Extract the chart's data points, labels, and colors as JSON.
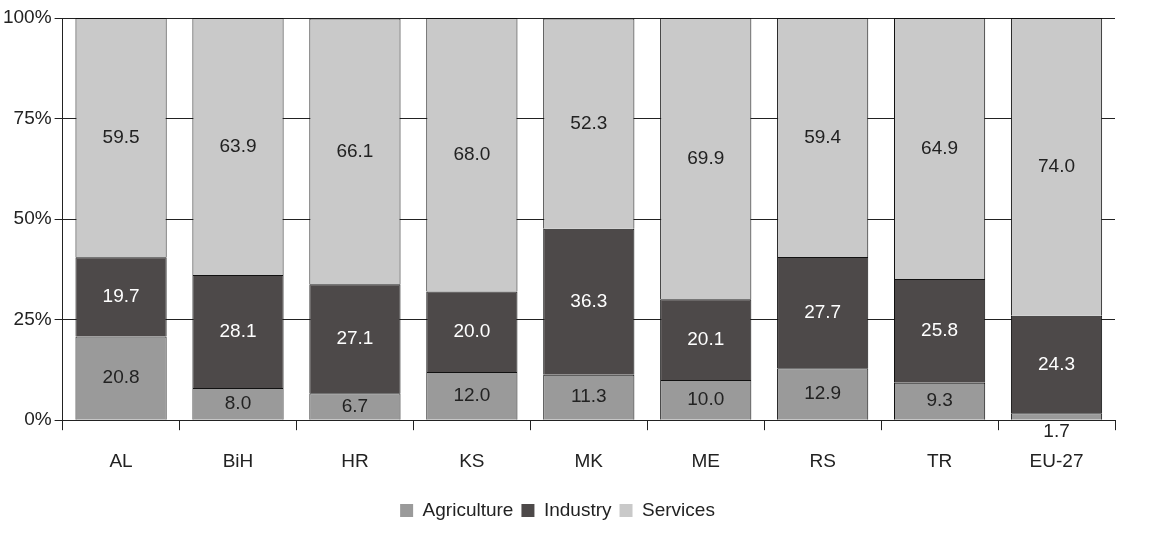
{
  "chart_data": {
    "type": "bar",
    "stacked": true,
    "categories": [
      "AL",
      "BiH",
      "HR",
      "KS",
      "MK",
      "ME",
      "RS",
      "TR",
      "EU-27"
    ],
    "series": [
      {
        "name": "Agriculture",
        "color": "#9a9a9a",
        "values": [
          20.8,
          8.0,
          6.7,
          12.0,
          11.3,
          10.0,
          12.9,
          9.3,
          1.7
        ],
        "value_labels": [
          "20.8",
          "8.0",
          "6.7",
          "12.0",
          "11.3",
          "10.0",
          "12.9",
          "9.3",
          "1.7"
        ]
      },
      {
        "name": "Industry",
        "color": "#4d4949",
        "values": [
          19.7,
          28.1,
          27.1,
          20.0,
          36.3,
          20.1,
          27.7,
          25.8,
          24.3
        ],
        "value_labels": [
          "19.7",
          "28.1",
          "27.1",
          "20.0",
          "36.3",
          "20.1",
          "27.7",
          "25.8",
          "24.3"
        ]
      },
      {
        "name": "Services",
        "color": "#c9c9c9",
        "values": [
          59.5,
          63.9,
          66.1,
          68.0,
          52.3,
          69.9,
          59.4,
          64.9,
          74.0
        ],
        "value_labels": [
          "59.5",
          "63.9",
          "66.1",
          "68.0",
          "52.3",
          "69.9",
          "59.4",
          "64.9",
          "74.0"
        ]
      }
    ],
    "ylim": [
      0,
      100
    ],
    "yticks": [
      {
        "value": 0,
        "label": "0%"
      },
      {
        "value": 25,
        "label": "25%"
      },
      {
        "value": 50,
        "label": "50%"
      },
      {
        "value": 75,
        "label": "75%"
      },
      {
        "value": 100,
        "label": "100%"
      }
    ],
    "grid": "y",
    "legend": "bottom"
  }
}
